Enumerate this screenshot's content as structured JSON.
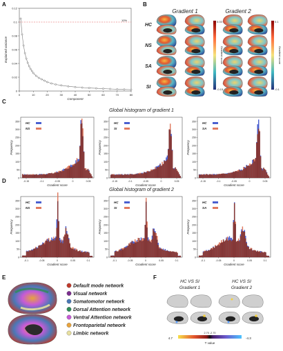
{
  "panels": {
    "A": {
      "label": "A",
      "chart_data": {
        "type": "line",
        "xlabel": "Component",
        "ylabel": "Explained variance",
        "xlim": [
          0,
          80
        ],
        "ylim": [
          0,
          0.12
        ],
        "xticks": [
          "0",
          "10",
          "20",
          "30",
          "40",
          "50",
          "60",
          "70",
          "80"
        ],
        "yticks": [
          "0",
          "0.02",
          "0.04",
          "0.06",
          "0.08",
          "0.1",
          "0.12"
        ],
        "threshold": {
          "value": 0.1,
          "label": "10%"
        },
        "x": [
          1,
          2,
          3,
          4,
          5,
          6,
          7,
          8,
          9,
          10,
          12,
          14,
          16,
          18,
          20,
          23,
          26,
          30,
          35,
          40,
          45,
          50,
          55,
          60,
          65,
          70,
          75,
          80
        ],
        "y": [
          0.105,
          0.082,
          0.066,
          0.055,
          0.047,
          0.041,
          0.036,
          0.032,
          0.029,
          0.026,
          0.022,
          0.019,
          0.017,
          0.015,
          0.013,
          0.011,
          0.0095,
          0.0082,
          0.0068,
          0.0058,
          0.005,
          0.0044,
          0.0039,
          0.0034,
          0.003,
          0.0026,
          0.0023,
          0.002
        ]
      }
    },
    "B": {
      "label": "B",
      "col1": "Gradient 1",
      "col2": "Gradient 2",
      "rows": [
        "HC",
        "NS",
        "SA",
        "SI"
      ],
      "cbar1": {
        "max": "0.03",
        "min": "-0.15",
        "title": "Gradient score"
      },
      "cbar2": {
        "max": "0.1",
        "min": "-0.1",
        "title": "Gradient score"
      }
    },
    "C": {
      "label": "C",
      "title": "Global histogram of gradient 1",
      "xlabel": "Gradient score",
      "ylabel": "Frequency",
      "yticks": [
        "0",
        "50",
        "100",
        "150",
        "200",
        "250",
        "300",
        "350"
      ],
      "xticks": [
        "-0.15",
        "-0.1",
        "-0.05",
        "0",
        "0.05"
      ],
      "subplots": [
        {
          "legend": [
            "HC",
            "NS"
          ]
        },
        {
          "legend": [
            "HC",
            "SI"
          ]
        },
        {
          "legend": [
            "HC",
            "SA"
          ]
        }
      ],
      "chart_data": [
        {
          "type": "bar",
          "series": [
            {
              "name": "HC"
            },
            {
              "name": "NS"
            }
          ],
          "x_range": [
            -0.17,
            0.06
          ],
          "peak_at": 0.02,
          "peak_count": 350
        },
        {
          "type": "bar",
          "series": [
            {
              "name": "HC"
            },
            {
              "name": "SI"
            }
          ],
          "x_range": [
            -0.17,
            0.06
          ],
          "peak_at": 0.02,
          "peak_count": 350
        },
        {
          "type": "bar",
          "series": [
            {
              "name": "HC"
            },
            {
              "name": "SA"
            }
          ],
          "x_range": [
            -0.17,
            0.06
          ],
          "peak_at": 0.02,
          "peak_count": 350
        }
      ]
    },
    "D": {
      "label": "D",
      "title": "Global histogram of gradient 2",
      "xlabel": "Gradient score",
      "ylabel": "Frequency",
      "yticks": [
        "0",
        "50",
        "100",
        "150",
        "200",
        "250",
        "300",
        "350"
      ],
      "xticks": [
        "-0.1",
        "-0.05",
        "0",
        "0.05",
        "0.1"
      ],
      "subplots": [
        {
          "legend": [
            "HC",
            "NS"
          ]
        },
        {
          "legend": [
            "HC",
            "SI"
          ]
        },
        {
          "legend": [
            "HC",
            "SA"
          ]
        }
      ],
      "chart_data": [
        {
          "type": "bar",
          "series": [
            {
              "name": "HC"
            },
            {
              "name": "NS"
            }
          ],
          "x_range": [
            -0.1,
            0.1
          ],
          "peak_at": 0.0,
          "peak_count": 350
        },
        {
          "type": "bar",
          "series": [
            {
              "name": "HC"
            },
            {
              "name": "SI"
            }
          ],
          "x_range": [
            -0.1,
            0.1
          ],
          "peak_at": 0.0,
          "peak_count": 350
        },
        {
          "type": "bar",
          "series": [
            {
              "name": "HC"
            },
            {
              "name": "SA"
            }
          ],
          "x_range": [
            -0.1,
            0.1
          ],
          "peak_at": 0.0,
          "peak_count": 350
        }
      ]
    },
    "E": {
      "label": "E",
      "networks": [
        {
          "name": "Default mode network",
          "color": "#c0392b"
        },
        {
          "name": "Visual network",
          "color": "#7b2d8e"
        },
        {
          "name": "Somatomotor network",
          "color": "#4a78b5"
        },
        {
          "name": "Dorsal Attention network",
          "color": "#2e8b57"
        },
        {
          "name": "Ventral Attention network",
          "color": "#c65bd6"
        },
        {
          "name": "Frontoparietal network",
          "color": "#e8a33c"
        },
        {
          "name": "Limbic network",
          "color": "#e8e0a0"
        }
      ]
    },
    "F": {
      "label": "F",
      "col1_line1": "HC VS SI",
      "col1_line2": "Gradient 1",
      "col2_line1": "HC VS SI",
      "col2_line2": "Gradient 2",
      "cbar_min": "4.7",
      "cbar_mid": "2.70 -2.70",
      "cbar_max": "-4.3",
      "cbar_title": "T value"
    }
  },
  "colors": {
    "hc": "#4a5fd0",
    "other": "#e07a5f",
    "overlap": "#8b3a3a",
    "threshold": "#e05050"
  }
}
